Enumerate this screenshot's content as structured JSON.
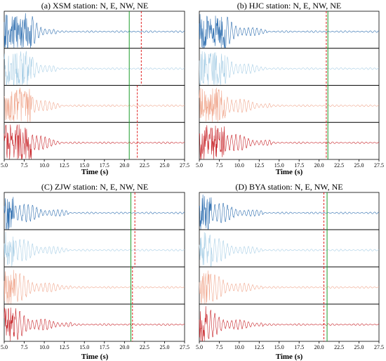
{
  "chart_data": [
    {
      "type": "line",
      "title": "(a) XSM station: N, E, NW, NE",
      "xlabel": "Time (s)",
      "xlim": [
        5.0,
        27.5
      ],
      "xticks": [
        "5.0",
        "7.5",
        "10.0",
        "12.5",
        "15.0",
        "17.5",
        "20.0",
        "22.5",
        "25.0",
        "27.5"
      ],
      "grid": false,
      "series": [
        {
          "component": "N",
          "color": "#2f6fb0",
          "values": {
            "quake_end": 8.4,
            "decay_end": 11.5,
            "ripple_end": 27.5
          }
        },
        {
          "component": "E",
          "color": "#a9cfe6",
          "values": {
            "quake_end": 8.4,
            "decay_end": 11.5,
            "ripple_end": 27.5
          }
        },
        {
          "component": "NW",
          "color": "#f0a88f",
          "values": {
            "quake_end": 8.4,
            "decay_end": 12.0,
            "ripple_end": 27.5
          }
        },
        {
          "component": "NE",
          "color": "#c8252a",
          "values": {
            "quake_end": 8.4,
            "decay_end": 12.0,
            "ripple_end": 27.5
          }
        }
      ],
      "markers": {
        "green_line": 20.6,
        "red_dashed_rows_1_2": 22.1,
        "red_dashed_rows_3_4": 21.6
      }
    },
    {
      "type": "line",
      "title": "(b) HJC station: N, E, NW, NE",
      "xlabel": "Time (s)",
      "xlim": [
        5.0,
        27.5
      ],
      "xticks": [
        "5.0",
        "7.5",
        "10.0",
        "12.5",
        "15.0",
        "17.5",
        "20.0",
        "22.5",
        "25.0",
        "27.5"
      ],
      "grid": false,
      "series": [
        {
          "component": "N",
          "color": "#2f6fb0",
          "values": {
            "quake_end": 8.2,
            "decay_end": 13.5,
            "ripple_end": 27.5
          }
        },
        {
          "component": "E",
          "color": "#a9cfe6",
          "values": {
            "quake_end": 8.2,
            "decay_end": 13.5,
            "ripple_end": 27.5
          }
        },
        {
          "component": "NW",
          "color": "#f0a88f",
          "values": {
            "quake_end": 8.2,
            "decay_end": 14.0,
            "ripple_end": 27.5
          }
        },
        {
          "component": "NE",
          "color": "#c8252a",
          "values": {
            "quake_end": 8.2,
            "decay_end": 14.0,
            "ripple_end": 27.5
          }
        }
      ],
      "markers": {
        "green_line": 21.1,
        "red_dashed_rows_1_2": 20.9,
        "red_dashed_rows_3_4": 20.9
      }
    },
    {
      "type": "line",
      "title": "(C) ZJW station: N, E, NW, NE",
      "xlabel": "Time (s)",
      "xlim": [
        5.0,
        27.5
      ],
      "xticks": [
        "5.0",
        "7.5",
        "10.0",
        "12.5",
        "15.0",
        "17.5",
        "20.0",
        "22.5",
        "25.0",
        "27.5"
      ],
      "grid": false,
      "series": [
        {
          "component": "N",
          "color": "#2f6fb0",
          "values": {
            "quake_end": 6.2,
            "decay_end": 13.0,
            "ripple_end": 27.5
          }
        },
        {
          "component": "E",
          "color": "#a9cfe6",
          "values": {
            "quake_end": 6.2,
            "decay_end": 13.0,
            "ripple_end": 27.5
          }
        },
        {
          "component": "NW",
          "color": "#f0a88f",
          "values": {
            "quake_end": 6.4,
            "decay_end": 13.5,
            "ripple_end": 27.5
          }
        },
        {
          "component": "NE",
          "color": "#c8252a",
          "values": {
            "quake_end": 6.4,
            "decay_end": 13.5,
            "ripple_end": 27.5
          }
        }
      ],
      "markers": {
        "green_line": 20.8,
        "red_dashed_rows_1_2": 21.3,
        "red_dashed_rows_3_4": 21.0
      }
    },
    {
      "type": "line",
      "title": "(D) BYA station: N, E, NW, NE",
      "xlabel": "Time (s)",
      "xlim": [
        5.0,
        27.5
      ],
      "xticks": [
        "5.0",
        "7.5",
        "10.0",
        "12.5",
        "15.0",
        "17.5",
        "20.0",
        "22.5",
        "25.0",
        "27.5"
      ],
      "grid": false,
      "series": [
        {
          "component": "N",
          "color": "#2f6fb0",
          "values": {
            "quake_end": 6.5,
            "decay_end": 13.0,
            "ripple_end": 27.5
          }
        },
        {
          "component": "E",
          "color": "#a9cfe6",
          "values": {
            "quake_end": 6.5,
            "decay_end": 13.0,
            "ripple_end": 27.5
          }
        },
        {
          "component": "NW",
          "color": "#f0a88f",
          "values": {
            "quake_end": 6.3,
            "decay_end": 13.0,
            "ripple_end": 27.5
          }
        },
        {
          "component": "NE",
          "color": "#c8252a",
          "values": {
            "quake_end": 6.0,
            "decay_end": 13.0,
            "ripple_end": 27.5
          }
        }
      ],
      "markers": {
        "green_line": 21.0,
        "red_dashed_rows_1_2": 20.6,
        "red_dashed_rows_3_4": 20.6
      }
    }
  ]
}
